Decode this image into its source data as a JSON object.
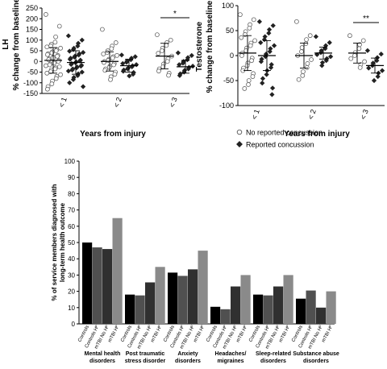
{
  "chart_data": [
    {
      "type": "scatter",
      "panel": "left",
      "ylabel_line1": "LH",
      "ylabel_line2": "% change from baseline",
      "xlabel": "Years from injury",
      "ylim": [
        -150,
        250
      ],
      "yticks": [
        -150,
        -100,
        -50,
        0,
        50,
        100,
        150,
        200,
        250
      ],
      "groups": [
        {
          "label": "< 1",
          "no_concussion": {
            "mean": 5,
            "sd": 60,
            "points": [
              220,
              165,
              115,
              90,
              80,
              72,
              68,
              62,
              55,
              50,
              45,
              40,
              36,
              32,
              28,
              24,
              20,
              16,
              12,
              8,
              4,
              0,
              -4,
              -8,
              -12,
              -16,
              -20,
              -25,
              -30,
              -35,
              -40,
              -48,
              -55,
              -62,
              -70,
              -80,
              -92,
              -105,
              -118,
              -130
            ]
          },
          "concussion": {
            "mean": -5,
            "sd": 55,
            "points": [
              120,
              100,
              85,
              72,
              62,
              55,
              48,
              42,
              36,
              30,
              25,
              20,
              15,
              10,
              6,
              2,
              -2,
              -6,
              -10,
              -14,
              -18,
              -22,
              -26,
              -30,
              -35,
              -40,
              -45,
              -50,
              -58,
              -66,
              -75,
              -85,
              -100,
              -118
            ]
          }
        },
        {
          "label": "< 2",
          "no_concussion": {
            "mean": 0,
            "sd": 45,
            "points": [
              150,
              88,
              72,
              60,
              50,
              42,
              35,
              28,
              22,
              16,
              10,
              5,
              0,
              -5,
              -10,
              -16,
              -22,
              -28,
              -35,
              -42,
              -50,
              -60,
              -72,
              -85
            ]
          },
          "concussion": {
            "mean": -20,
            "sd": 30,
            "points": [
              30,
              22,
              15,
              8,
              2,
              -4,
              -10,
              -15,
              -20,
              -25,
              -30,
              -35,
              -40,
              -46,
              -52,
              -60,
              -68
            ]
          }
        },
        {
          "label": "< 3",
          "no_concussion": {
            "mean": 25,
            "sd": 60,
            "points": [
              125,
              100,
              88,
              75,
              62,
              50,
              38,
              25,
              12,
              0,
              -12,
              -25,
              -35,
              -45,
              -55,
              -65
            ]
          },
          "concussion": {
            "mean": -25,
            "sd": 30,
            "points": [
              40,
              28,
              18,
              8,
              0,
              -8,
              -15,
              -22,
              -28,
              -35,
              -42,
              -50,
              -58,
              -66
            ]
          }
        }
      ],
      "significance": {
        "group": "< 3",
        "label": "*"
      }
    },
    {
      "type": "scatter",
      "panel": "right",
      "ylabel_line1": "Testosterone",
      "ylabel_line2": "% change from baseline",
      "xlabel": "Years from injury",
      "ylim": [
        -100,
        100
      ],
      "yticks": [
        -100,
        -50,
        0,
        50,
        100
      ],
      "groups": [
        {
          "label": "< 1",
          "no_concussion": {
            "mean": 5,
            "sd": 35,
            "points": [
              82,
              72,
              62,
              55,
              48,
              42,
              36,
              30,
              25,
              20,
              15,
              10,
              5,
              0,
              -5,
              -10,
              -15,
              -20,
              -25,
              -30,
              -36,
              -42,
              -50,
              -58,
              -66
            ]
          },
          "concussion": {
            "mean": 0,
            "sd": 30,
            "points": [
              68,
              60,
              52,
              45,
              38,
              32,
              26,
              20,
              14,
              8,
              3,
              -2,
              -7,
              -12,
              -18,
              -24,
              -30,
              -38,
              -46,
              -55,
              -65,
              -78
            ]
          }
        },
        {
          "label": "< 2",
          "no_concussion": {
            "mean": 0,
            "sd": 25,
            "points": [
              68,
              40,
              32,
              24,
              16,
              8,
              0,
              -8,
              -16,
              -24,
              -32,
              -40,
              -48
            ]
          },
          "concussion": {
            "mean": 5,
            "sd": 12,
            "points": [
              38,
              26,
              20,
              14,
              10,
              6,
              2,
              -2,
              -6,
              -10,
              -14,
              -20
            ]
          }
        },
        {
          "label": "< 3",
          "no_concussion": {
            "mean": 5,
            "sd": 20,
            "points": [
              40,
              30,
              22,
              14,
              6,
              0,
              -6,
              -12,
              -18,
              -24
            ]
          },
          "concussion": {
            "mean": -20,
            "sd": 15,
            "points": [
              10,
              3,
              -4,
              -10,
              -15,
              -20,
              -25,
              -30,
              -35,
              -42,
              -50
            ]
          }
        }
      ],
      "significance": {
        "group": "< 3",
        "label": "**"
      }
    },
    {
      "type": "bar",
      "panel": "bottom",
      "ylabel_line1": "% of service members diagnosed with",
      "ylabel_line2": "long-term health outcome",
      "ylim": [
        0,
        100
      ],
      "yticks": [
        0,
        10,
        20,
        30,
        40,
        50,
        60,
        70,
        80,
        90,
        100
      ],
      "bar_labels": [
        "Controls",
        "Controls Hᴾ",
        "mTBI No Hᴾ",
        "mTBI Hᴾ"
      ],
      "bar_colors": [
        "#000000",
        "#505050",
        "#303030",
        "#8a8a8a"
      ],
      "categories": [
        {
          "line1": "Mental health",
          "line2": "disorders",
          "values": [
            50,
            47,
            46,
            65
          ]
        },
        {
          "line1": "Post traumatic",
          "line2": "stress disorder",
          "values": [
            18,
            17.5,
            25.5,
            35
          ]
        },
        {
          "line1": "Anxiety",
          "line2": "disorders",
          "values": [
            31.5,
            29.5,
            33.5,
            45
          ]
        },
        {
          "line1": "Headaches/",
          "line2": "migraines",
          "values": [
            10.5,
            9,
            23,
            30
          ]
        },
        {
          "line1": "Sleep-related",
          "line2": "disorders",
          "values": [
            18,
            17.5,
            23,
            30
          ]
        },
        {
          "line1": "Substance abuse",
          "line2": "disorders",
          "values": [
            15.5,
            20.5,
            10,
            20
          ]
        }
      ]
    }
  ],
  "legend": {
    "no_concussion": "No reported concussion",
    "concussion": "Reported concussion"
  }
}
